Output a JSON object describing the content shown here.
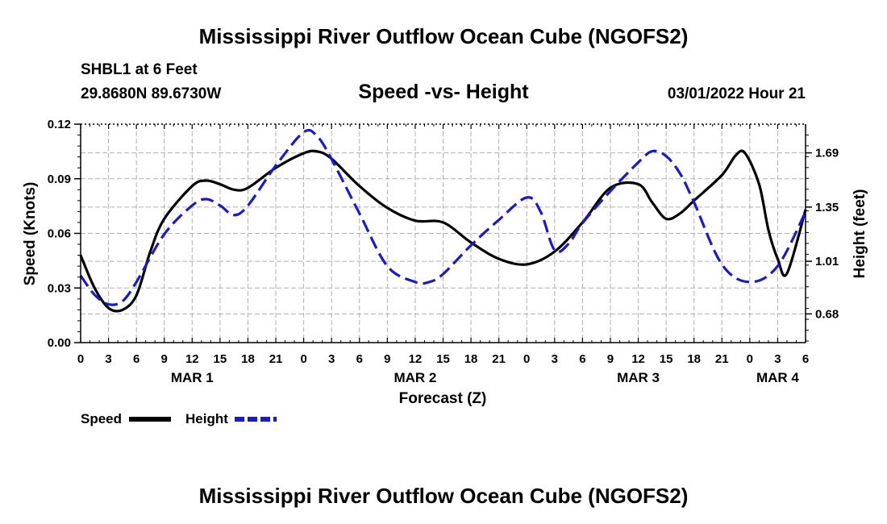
{
  "header": {
    "title": "Mississippi River Outflow Ocean Cube (NGOFS2)",
    "station": "SHBL1 at 6 Feet",
    "coords": "29.8680N  89.6730W",
    "chart_title": "Speed -vs- Height",
    "timestamp": "03/01/2022 Hour 21"
  },
  "footer": {
    "title": "Mississippi River Outflow Ocean Cube (NGOFS2)"
  },
  "colors": {
    "speed": "#000000",
    "height": "#1a1acc",
    "grid": "#b0b0b0"
  },
  "chart_data": {
    "type": "line",
    "title": "Speed -vs- Height",
    "xlabel": "Forecast (Z)",
    "ylabel": "Speed (Knots)",
    "y2label": "Height (feet)",
    "x_hours_range": [
      0,
      78
    ],
    "x_ticks": [
      "0",
      "3",
      "6",
      "9",
      "12",
      "15",
      "18",
      "21",
      "0",
      "3",
      "6",
      "9",
      "12",
      "15",
      "18",
      "21",
      "0",
      "3",
      "6",
      "9",
      "12",
      "15",
      "18",
      "21",
      "0",
      "3",
      "6"
    ],
    "day_labels": [
      {
        "hour": 12,
        "label": "MAR 1"
      },
      {
        "hour": 36,
        "label": "MAR 2"
      },
      {
        "hour": 60,
        "label": "MAR 3"
      },
      {
        "hour": 75,
        "label": "MAR 4"
      }
    ],
    "ylim": [
      0,
      0.12
    ],
    "y_ticks": [
      0,
      0.03,
      0.06,
      0.09,
      0.12
    ],
    "y_tick_labels": [
      "0.00",
      "0.03",
      "0.06",
      "0.09",
      "0.12"
    ],
    "y2lim": [
      0.5,
      1.87
    ],
    "y2_ticks": [
      0.68,
      1.01,
      1.35,
      1.69
    ],
    "y2_tick_labels": [
      "0.68",
      "1.01",
      "1.35",
      "1.69"
    ],
    "legend": [
      {
        "name": "Speed",
        "style": "solid"
      },
      {
        "name": "Height",
        "style": "dashed"
      }
    ],
    "series": [
      {
        "name": "Speed",
        "axis": "left",
        "x": [
          0,
          1.5,
          3,
          4.5,
          6,
          7.5,
          9,
          12,
          13.5,
          15,
          16.5,
          18,
          21,
          24,
          25.5,
          27,
          30,
          33,
          36,
          39,
          42,
          45,
          48,
          51,
          54,
          57,
          60,
          61.5,
          63,
          64.5,
          66,
          69,
          70.5,
          71.5,
          73,
          74,
          75,
          76,
          78
        ],
        "values": [
          0.048,
          0.03,
          0.019,
          0.018,
          0.026,
          0.05,
          0.068,
          0.086,
          0.089,
          0.087,
          0.084,
          0.085,
          0.096,
          0.104,
          0.105,
          0.101,
          0.086,
          0.074,
          0.067,
          0.066,
          0.055,
          0.046,
          0.043,
          0.05,
          0.066,
          0.085,
          0.087,
          0.077,
          0.068,
          0.071,
          0.078,
          0.092,
          0.103,
          0.104,
          0.087,
          0.062,
          0.046,
          0.038,
          0.073
        ]
      },
      {
        "name": "Height",
        "axis": "right",
        "x": [
          0,
          1.5,
          3,
          4.5,
          6,
          9,
          12,
          13.5,
          15,
          16.5,
          18,
          21,
          24,
          25.5,
          27,
          30,
          33,
          36,
          37.5,
          39,
          42,
          45,
          48,
          49.5,
          51,
          52.5,
          54,
          57,
          60,
          61.5,
          63,
          64.5,
          66,
          69,
          72,
          75,
          78
        ],
        "values": [
          0.92,
          0.8,
          0.74,
          0.76,
          0.88,
          1.18,
          1.36,
          1.4,
          1.36,
          1.3,
          1.36,
          1.61,
          1.82,
          1.79,
          1.65,
          1.31,
          0.98,
          0.88,
          0.88,
          0.93,
          1.11,
          1.27,
          1.41,
          1.32,
          1.08,
          1.12,
          1.25,
          1.45,
          1.63,
          1.7,
          1.67,
          1.56,
          1.38,
          0.99,
          0.88,
          0.98,
          1.32
        ]
      }
    ]
  }
}
